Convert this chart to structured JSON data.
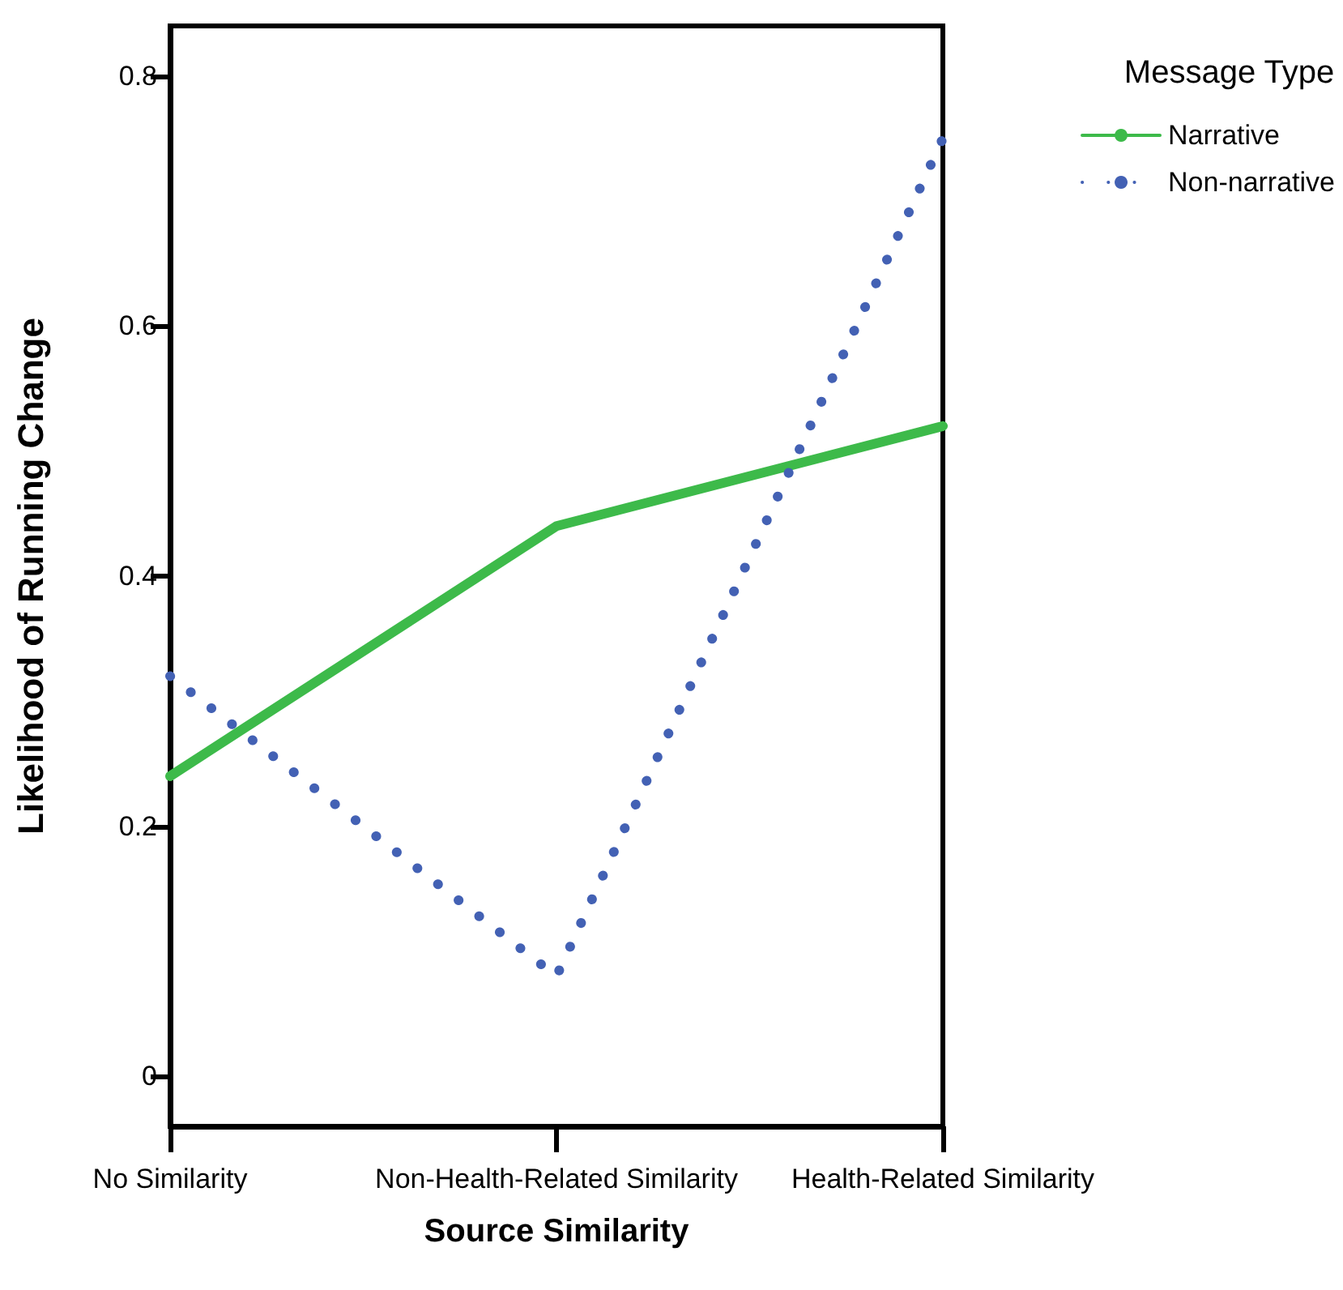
{
  "chart_data": {
    "type": "line",
    "xlabel": "Source Similarity",
    "ylabel": "Likelihood of Running Change",
    "legend_title": "Message Type",
    "categories": [
      "No Similarity",
      "Non-Health-Related Similarity",
      "Health-Related Similarity"
    ],
    "series": [
      {
        "name": "Narrative",
        "color": "#3dba4a",
        "line_style": "solid",
        "values": [
          0.24,
          0.44,
          0.52
        ]
      },
      {
        "name": "Non-narrative",
        "color": "#4361b4",
        "line_style": "dotted",
        "values": [
          0.32,
          0.08,
          0.75
        ]
      }
    ],
    "ylim": [
      -0.04,
      0.84
    ],
    "yticks": [
      0,
      0.2,
      0.4,
      0.6,
      0.8
    ],
    "grid": false,
    "legend": "top right",
    "marker": "none"
  }
}
